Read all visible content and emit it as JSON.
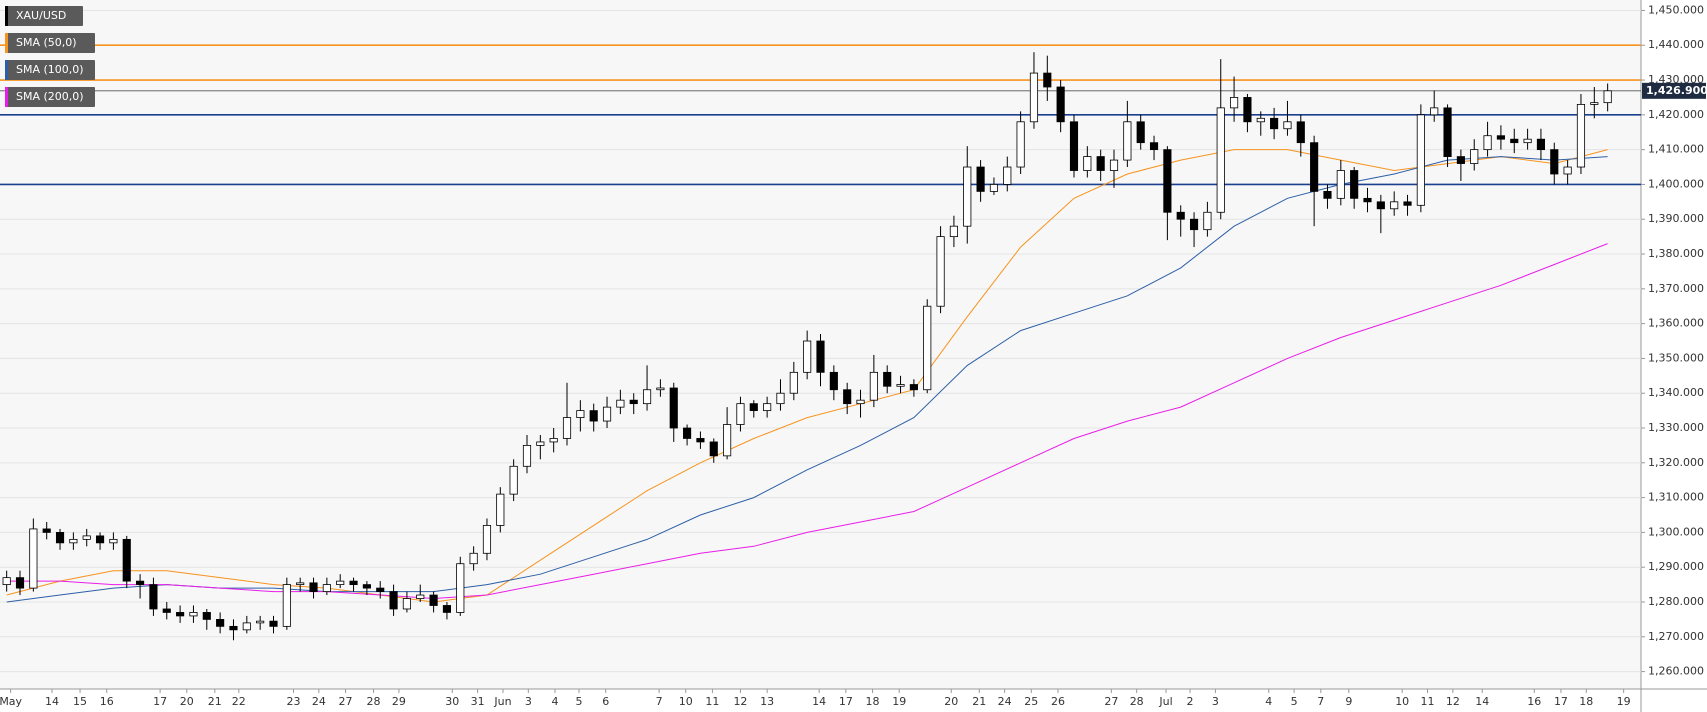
{
  "chart_data": {
    "type": "candlestick",
    "name": "XAU/USD",
    "x": [
      0.5,
      1.5,
      2.5,
      3.5,
      4.5,
      5.5,
      6.5,
      7.5,
      8.5,
      9.5,
      10.5,
      11.5,
      12.5,
      13.5,
      14.5,
      15.5,
      16.5,
      17.5,
      18.5,
      19.5,
      20.5,
      21.5,
      22.5,
      23.5,
      24.5,
      25.5,
      26.5,
      27.5,
      28.5,
      29.5,
      30.5,
      31.5,
      32.5,
      33.5,
      34.5,
      35.5,
      36.5,
      37.5,
      38.5,
      39.5,
      40.5,
      41.5,
      42.5,
      43.5,
      44.5,
      45.5,
      46.5,
      47.5,
      48.5,
      49.5,
      50.5,
      51.5,
      52.5,
      53.5,
      54.5,
      55.5,
      56.5,
      57.5,
      58.5,
      59.5,
      60.5,
      61.5,
      62.5,
      63.5,
      64.5,
      65.5,
      66.5,
      67.5,
      68.5,
      69.5,
      70.5,
      71.5,
      72.5,
      73.5,
      74.5,
      75.5,
      76.5,
      77.5,
      78.5,
      79.5,
      80.5,
      81.5,
      82.5,
      83.5,
      84.5,
      85.5,
      86.5,
      87.5,
      88.5,
      89.5,
      90.5,
      91.5,
      92.5,
      93.5,
      94.5,
      95.5,
      96.5,
      97.5,
      98.5,
      99.5,
      100.5,
      101.5,
      102.5,
      103.5,
      104.5,
      105.5,
      106.5,
      107.5,
      108.5,
      109.5,
      110.5,
      111.5,
      112.5,
      113.5,
      114.5,
      115.5,
      116.5,
      117.5,
      118.5,
      119.5,
      120.5
    ],
    "open": [
      1285,
      1287,
      1284,
      1301,
      1300,
      1297,
      1298,
      1299,
      1297,
      1298,
      1286,
      1285,
      1278,
      1277,
      1276,
      1277,
      1275,
      1273,
      1272,
      1274,
      1274.5,
      1273,
      1285,
      1285.5,
      1283,
      1285,
      1286,
      1285,
      1284,
      1283,
      1278,
      1281,
      1282,
      1279,
      1277,
      1291,
      1294,
      1302,
      1311,
      1319,
      1325,
      1326,
      1327,
      1333,
      1335,
      1332,
      1336,
      1338,
      1337,
      1341,
      1341.5,
      1330,
      1327,
      1326,
      1322,
      1331,
      1337,
      1335,
      1337,
      1340,
      1346,
      1355,
      1346,
      1341,
      1337,
      1338,
      1346,
      1342,
      1342.5,
      1341,
      1365,
      1385,
      1388,
      1405,
      1398,
      1400,
      1405,
      1418,
      1432,
      1428,
      1418,
      1404,
      1408,
      1404,
      1407,
      1418,
      1412,
      1410,
      1392,
      1390,
      1387,
      1392,
      1422,
      1425,
      1418,
      1419,
      1416,
      1418,
      1412,
      1398,
      1396,
      1404,
      1396,
      1395,
      1393,
      1395,
      1394,
      1420,
      1422,
      1408,
      1406,
      1410,
      1414,
      1413,
      1412,
      1413,
      1410,
      1403,
      1405,
      1423,
      1423.5
    ],
    "high": [
      1289,
      1289,
      1304,
      1303,
      1301,
      1300,
      1301,
      1300,
      1300,
      1299,
      1288,
      1287,
      1280,
      1279,
      1279,
      1278,
      1277,
      1275,
      1276,
      1276,
      1276,
      1287,
      1287,
      1287,
      1287,
      1288,
      1287,
      1286,
      1286,
      1285,
      1283,
      1285,
      1283,
      1280,
      1293,
      1296,
      1304,
      1313,
      1321,
      1328,
      1328,
      1330,
      1343,
      1338,
      1337,
      1339,
      1341,
      1340,
      1348,
      1344,
      1343,
      1331,
      1329,
      1327,
      1336,
      1339,
      1338,
      1339,
      1344,
      1349,
      1358,
      1357,
      1348,
      1343,
      1341,
      1351,
      1348,
      1345,
      1344,
      1367,
      1388,
      1391,
      1411,
      1407,
      1402,
      1408,
      1421,
      1438,
      1437,
      1430,
      1420,
      1411,
      1410,
      1410,
      1424,
      1420,
      1414,
      1411,
      1394,
      1392,
      1395,
      1436,
      1431,
      1426,
      1421,
      1422,
      1424,
      1420,
      1414,
      1400,
      1407,
      1405,
      1399,
      1397,
      1398,
      1397,
      1423,
      1427,
      1423,
      1410,
      1413,
      1418,
      1417,
      1416,
      1416,
      1416,
      1412,
      1407,
      1426,
      1428,
      1429
    ],
    "low": [
      1283,
      1282,
      1283,
      1298,
      1295,
      1295,
      1296,
      1295,
      1295,
      1284,
      1281,
      1276,
      1275,
      1274,
      1274,
      1272,
      1271,
      1269,
      1271,
      1272,
      1271,
      1272,
      1283,
      1281,
      1282,
      1284,
      1283,
      1282,
      1281,
      1276,
      1277,
      1280,
      1277,
      1275,
      1276,
      1289,
      1292,
      1300,
      1309,
      1317,
      1321,
      1323,
      1325,
      1329,
      1329,
      1330,
      1334,
      1334,
      1335,
      1339,
      1326,
      1325,
      1324,
      1320,
      1321,
      1329,
      1333,
      1333,
      1335,
      1338,
      1344,
      1342,
      1338,
      1334,
      1333,
      1336,
      1340,
      1340,
      1339,
      1340,
      1363,
      1382,
      1383,
      1395,
      1397,
      1398,
      1403,
      1416,
      1424,
      1415,
      1402,
      1402,
      1401,
      1399,
      1405,
      1410,
      1407,
      1384,
      1385,
      1382,
      1385,
      1390,
      1418,
      1415,
      1414,
      1413,
      1414,
      1408,
      1388,
      1393,
      1394,
      1393,
      1392,
      1386,
      1391,
      1391,
      1392,
      1418,
      1405,
      1401,
      1404,
      1408,
      1410,
      1409,
      1410,
      1407,
      1400,
      1400,
      1403,
      1419,
      1421
    ],
    "close": [
      1287,
      1284,
      1301,
      1300,
      1297,
      1298,
      1299,
      1297,
      1298,
      1286,
      1285,
      1278,
      1277,
      1276,
      1277,
      1275,
      1273,
      1272,
      1274,
      1274.5,
      1273,
      1285,
      1285.5,
      1283,
      1285,
      1286,
      1285,
      1284,
      1283,
      1278,
      1281,
      1282,
      1279,
      1277,
      1291,
      1294,
      1302,
      1311,
      1319,
      1325,
      1326,
      1327,
      1333,
      1335,
      1332,
      1336,
      1338,
      1337,
      1341,
      1341.5,
      1330,
      1327,
      1326,
      1322,
      1331,
      1337,
      1335,
      1337,
      1340,
      1346,
      1355,
      1346,
      1341,
      1337,
      1338,
      1346,
      1342,
      1342.5,
      1341,
      1365,
      1385,
      1388,
      1405,
      1398,
      1400,
      1405,
      1418,
      1432,
      1428,
      1418,
      1404,
      1408,
      1404,
      1407,
      1418,
      1412,
      1410,
      1392,
      1390,
      1387,
      1392,
      1422,
      1425,
      1418,
      1419,
      1416,
      1418,
      1412,
      1398,
      1396,
      1404,
      1396,
      1395,
      1393,
      1395,
      1394,
      1420,
      1422,
      1408,
      1406,
      1410,
      1414,
      1413,
      1412,
      1413,
      1410,
      1403,
      1405,
      1423,
      1423.5,
      1426.9
    ],
    "up_color": "#ffffff",
    "down_color": "#000000",
    "series": [
      {
        "name": "SMA (50,0)",
        "color": "#f7931e",
        "x": [
          0.5,
          4.5,
          8.5,
          12.5,
          16.5,
          20.5,
          24.5,
          28.5,
          32.5,
          36.5,
          40.5,
          44.5,
          48.5,
          52.5,
          56.5,
          60.5,
          64.5,
          68.5,
          72.5,
          76.5,
          80.5,
          84.5,
          88.5,
          92.5,
          96.5,
          100.5,
          104.5,
          108.5,
          112.5,
          116.5,
          120.5
        ],
        "values": [
          1282,
          1286,
          1289,
          1289,
          1287,
          1285,
          1284,
          1282,
          1280,
          1282,
          1292,
          1302,
          1312,
          1320,
          1327,
          1333,
          1337,
          1341,
          1362,
          1382,
          1396,
          1403,
          1407,
          1410,
          1410,
          1407,
          1404,
          1406,
          1408,
          1406,
          1410
        ]
      },
      {
        "name": "SMA (100,0)",
        "color": "#2c5fa8",
        "x": [
          0.5,
          4.5,
          8.5,
          12.5,
          16.5,
          20.5,
          24.5,
          28.5,
          32.5,
          36.5,
          40.5,
          44.5,
          48.5,
          52.5,
          56.5,
          60.5,
          64.5,
          68.5,
          72.5,
          76.5,
          80.5,
          84.5,
          88.5,
          92.5,
          96.5,
          100.5,
          104.5,
          108.5,
          112.5,
          116.5,
          120.5
        ],
        "values": [
          1280,
          1282,
          1284,
          1285,
          1284,
          1284,
          1283,
          1283,
          1283,
          1285,
          1288,
          1293,
          1298,
          1305,
          1310,
          1318,
          1325,
          1333,
          1348,
          1358,
          1363,
          1368,
          1376,
          1388,
          1396,
          1400,
          1403,
          1407,
          1408,
          1407,
          1408
        ]
      },
      {
        "name": "SMA (200,0)",
        "color": "#e81ee8",
        "x": [
          0.5,
          4.5,
          8.5,
          12.5,
          16.5,
          20.5,
          24.5,
          28.5,
          32.5,
          36.5,
          40.5,
          44.5,
          48.5,
          52.5,
          56.5,
          60.5,
          64.5,
          68.5,
          72.5,
          76.5,
          80.5,
          84.5,
          88.5,
          92.5,
          96.5,
          100.5,
          104.5,
          108.5,
          112.5,
          116.5,
          120.5
        ],
        "values": [
          1286,
          1286,
          1285,
          1285,
          1284,
          1283,
          1283,
          1282,
          1281,
          1282,
          1285,
          1288,
          1291,
          1294,
          1296,
          1300,
          1303,
          1306,
          1313,
          1320,
          1327,
          1332,
          1336,
          1343,
          1350,
          1356,
          1361,
          1366,
          1371,
          1377,
          1383
        ]
      }
    ],
    "levels": [
      {
        "value": 1440,
        "color": "#f7931e"
      },
      {
        "value": 1430,
        "color": "#f7931e"
      },
      {
        "value": 1420,
        "color": "#1a3f8f"
      },
      {
        "value": 1400,
        "color": "#1a3f8f"
      }
    ],
    "last_price": {
      "value": 1426.9,
      "label": "1,426.900"
    },
    "xlim": [
      0,
      123
    ],
    "ylim": [
      1255,
      1453
    ],
    "xticks": [
      {
        "value": 0.8,
        "label": "May"
      },
      {
        "value": 3.9,
        "label": "14"
      },
      {
        "value": 6.0,
        "label": "15"
      },
      {
        "value": 8.0,
        "label": "16"
      },
      {
        "value": 12.0,
        "label": "17"
      },
      {
        "value": 14.0,
        "label": "20"
      },
      {
        "value": 16.1,
        "label": "21"
      },
      {
        "value": 17.9,
        "label": "22"
      },
      {
        "value": 22.0,
        "label": "23"
      },
      {
        "value": 23.9,
        "label": "24"
      },
      {
        "value": 25.9,
        "label": "27"
      },
      {
        "value": 28.0,
        "label": "28"
      },
      {
        "value": 29.9,
        "label": "29"
      },
      {
        "value": 33.9,
        "label": "30"
      },
      {
        "value": 35.8,
        "label": "31"
      },
      {
        "value": 37.7,
        "label": "Jun"
      },
      {
        "value": 39.6,
        "label": "3"
      },
      {
        "value": 41.6,
        "label": "4"
      },
      {
        "value": 43.4,
        "label": "5"
      },
      {
        "value": 45.4,
        "label": "6"
      },
      {
        "value": 49.4,
        "label": "7"
      },
      {
        "value": 51.4,
        "label": "10"
      },
      {
        "value": 53.4,
        "label": "11"
      },
      {
        "value": 55.5,
        "label": "12"
      },
      {
        "value": 57.5,
        "label": "13"
      },
      {
        "value": 61.4,
        "label": "14"
      },
      {
        "value": 63.4,
        "label": "17"
      },
      {
        "value": 65.4,
        "label": "18"
      },
      {
        "value": 67.4,
        "label": "19"
      },
      {
        "value": 71.3,
        "label": "20"
      },
      {
        "value": 73.4,
        "label": "21"
      },
      {
        "value": 75.3,
        "label": "24"
      },
      {
        "value": 77.3,
        "label": "25"
      },
      {
        "value": 79.3,
        "label": "26"
      },
      {
        "value": 83.3,
        "label": "27"
      },
      {
        "value": 85.2,
        "label": "28"
      },
      {
        "value": 87.4,
        "label": "Jul"
      },
      {
        "value": 89.2,
        "label": "2"
      },
      {
        "value": 91.1,
        "label": "3"
      },
      {
        "value": 95.1,
        "label": "4"
      },
      {
        "value": 97.0,
        "label": "5"
      },
      {
        "value": 99.0,
        "label": "7"
      },
      {
        "value": 101.1,
        "label": "9"
      },
      {
        "value": 105.1,
        "label": "10"
      },
      {
        "value": 107.0,
        "label": "11"
      },
      {
        "value": 108.9,
        "label": "12"
      },
      {
        "value": 111.1,
        "label": "14"
      },
      {
        "value": 115.0,
        "label": "16"
      },
      {
        "value": 117.0,
        "label": "17"
      },
      {
        "value": 118.9,
        "label": "18"
      },
      {
        "value": 121.7,
        "label": "19"
      }
    ],
    "yticks": [
      {
        "value": 1260,
        "label": "1,260.000"
      },
      {
        "value": 1270,
        "label": "1,270.000"
      },
      {
        "value": 1280,
        "label": "1,280.000"
      },
      {
        "value": 1290,
        "label": "1,290.000"
      },
      {
        "value": 1300,
        "label": "1,300.000"
      },
      {
        "value": 1310,
        "label": "1,310.000"
      },
      {
        "value": 1320,
        "label": "1,320.000"
      },
      {
        "value": 1330,
        "label": "1,330.000"
      },
      {
        "value": 1340,
        "label": "1,340.000"
      },
      {
        "value": 1350,
        "label": "1,350.000"
      },
      {
        "value": 1360,
        "label": "1,360.000"
      },
      {
        "value": 1370,
        "label": "1,370.000"
      },
      {
        "value": 1380,
        "label": "1,380.000"
      },
      {
        "value": 1390,
        "label": "1,390.000"
      },
      {
        "value": 1400,
        "label": "1,400.000"
      },
      {
        "value": 1410,
        "label": "1,410.000"
      },
      {
        "value": 1420,
        "label": "1,420.000"
      },
      {
        "value": 1430,
        "label": "1,430.000"
      },
      {
        "value": 1440,
        "label": "1,440.000"
      },
      {
        "value": 1450,
        "label": "1,450.000"
      }
    ],
    "grid": true
  }
}
